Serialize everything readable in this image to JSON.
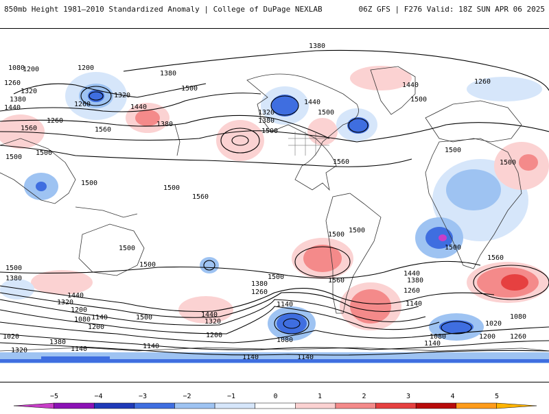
{
  "header": {
    "left_title": "850mb Height 1981–2010 Standardized Anomaly | College of DuPage NEXLAB",
    "right_title": "06Z GFS | F276 Valid: 18Z SUN APR 06 2025"
  },
  "map": {
    "contour_labels": [
      "1380",
      "1200",
      "1260",
      "1320",
      "1380",
      "1440",
      "1560",
      "1500",
      "1500",
      "1260",
      "1320",
      "1380",
      "1500",
      "1440",
      "1380",
      "1320",
      "1380",
      "1500",
      "1440",
      "1500",
      "1560",
      "1260",
      "1440",
      "1500",
      "1500",
      "1500",
      "1500",
      "1560",
      "1500",
      "1500",
      "1500",
      "1560",
      "1500",
      "1380",
      "1260",
      "1140",
      "1080",
      "1200",
      "1440",
      "1320",
      "1500",
      "1140",
      "1440",
      "1380",
      "1260",
      "1140",
      "1020",
      "1080",
      "1260",
      "1200",
      "1080",
      "1140",
      "1140",
      "1140",
      "1380",
      "1440",
      "1320",
      "1200",
      "1080",
      "1140",
      "1200",
      "1020",
      "1380",
      "1320",
      "1500",
      "1500",
      "1560",
      "1260",
      "1200",
      "1080",
      "1140",
      "1500",
      "1500",
      "1560"
    ]
  },
  "colorbar": {
    "ticks": [
      "−5",
      "−4",
      "−3",
      "−2",
      "−1",
      "0",
      "1",
      "2",
      "3",
      "4",
      "5"
    ],
    "colors": [
      "#c83ec8",
      "#8b12b5",
      "#1f3ab8",
      "#3f6ee0",
      "#9ec3f2",
      "#d6e6fa",
      "#ffffff",
      "#fbd2d2",
      "#f48a8a",
      "#e64040",
      "#b80b0b",
      "#ff9b1a",
      "#ffb400"
    ]
  }
}
